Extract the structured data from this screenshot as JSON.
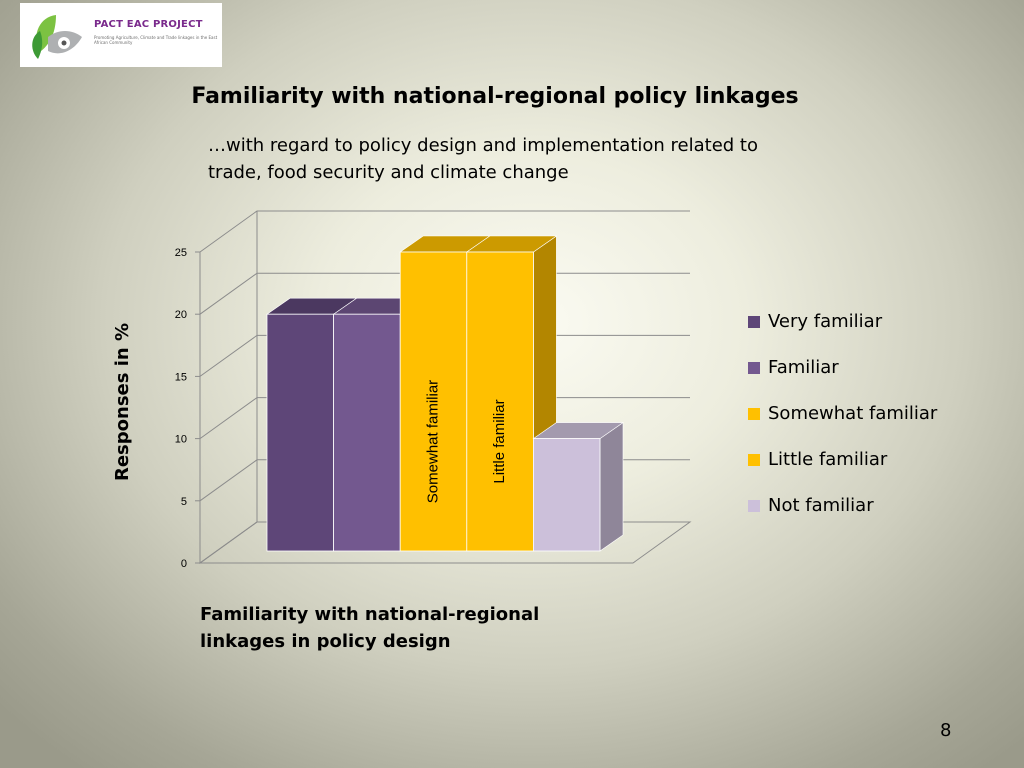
{
  "logo": {
    "title": "PACT EAC PROJECT",
    "tagline": "Promoting Agriculture, Climate and Trade linkages in the East African Community"
  },
  "slide": {
    "title": "Familiarity with national-regional policy linkages",
    "subtitle": "…with regard to policy design and implementation related to trade, food security and climate change",
    "page_number": "8"
  },
  "chart_data": {
    "type": "bar",
    "style": "3d-clustered-column",
    "title": "",
    "xlabel": "Familiarity with national-regional linkages in policy design",
    "ylabel": "Responses in %",
    "ylim": [
      0,
      25
    ],
    "yticks": [
      0,
      5,
      10,
      15,
      20,
      25
    ],
    "grid": true,
    "legend_position": "right",
    "series": [
      {
        "name": "Very familiar",
        "value": 20,
        "color": "#5e4678",
        "label": ""
      },
      {
        "name": "Familiar",
        "value": 20,
        "color": "#73588f",
        "label": ""
      },
      {
        "name": "Somewhat familiar",
        "value": 25,
        "color": "#ffc000",
        "label": "Somewhat familiar"
      },
      {
        "name": "Little familiar",
        "value": 25,
        "color": "#ffc000",
        "label": "Little familiar"
      },
      {
        "name": "Not familiar",
        "value": 10,
        "color": "#ccc0da",
        "label": ""
      }
    ]
  }
}
